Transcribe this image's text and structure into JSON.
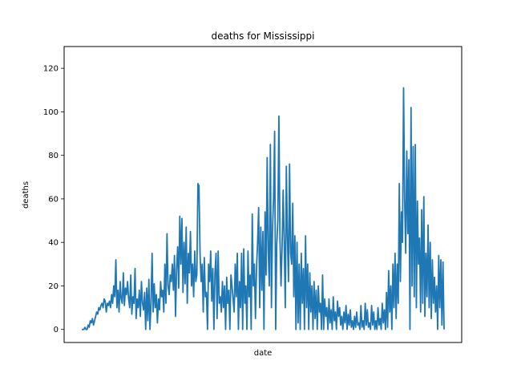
{
  "chart_data": {
    "type": "line",
    "title": "deaths for Mississippi",
    "xlabel": "date",
    "ylabel": "deaths",
    "ylim": [
      -6,
      130
    ],
    "yticks": [
      0,
      20,
      40,
      60,
      80,
      100,
      120
    ],
    "grid": false,
    "legend": "none",
    "color": "#1f77b4",
    "series": [
      {
        "values": [
          0,
          0,
          0,
          1,
          0,
          0,
          2,
          1,
          4,
          3,
          5,
          2,
          4,
          6,
          8,
          7,
          10,
          9,
          11,
          12,
          10,
          14,
          13,
          8,
          12,
          11,
          13,
          10,
          16,
          12,
          20,
          15,
          32,
          10,
          18,
          8,
          22,
          14,
          12,
          26,
          11,
          19,
          16,
          22,
          14,
          10,
          25,
          7,
          15,
          12,
          28,
          5,
          14,
          10,
          18,
          6,
          22,
          12,
          9,
          17,
          0,
          19,
          4,
          23,
          0,
          12,
          35,
          8,
          21,
          10,
          16,
          3,
          14,
          9,
          22,
          15,
          18,
          8,
          30,
          12,
          44,
          20,
          16,
          25,
          22,
          30,
          18,
          34,
          6,
          28,
          38,
          19,
          52,
          30,
          51,
          17,
          40,
          21,
          47,
          12,
          35,
          26,
          45,
          20,
          30,
          15,
          36,
          22,
          25,
          67,
          66,
          35,
          22,
          30,
          8,
          33,
          15,
          17,
          0,
          30,
          22,
          36,
          13,
          28,
          0,
          26,
          35,
          5,
          36,
          12,
          15,
          8,
          22,
          10,
          20,
          0,
          24,
          12,
          18,
          0,
          25,
          20,
          14,
          8,
          30,
          15,
          35,
          0,
          22,
          10,
          35,
          0,
          37,
          12,
          20,
          0,
          36,
          15,
          25,
          0,
          53,
          20,
          30,
          5,
          28,
          40,
          56,
          10,
          47,
          18,
          45,
          0,
          54,
          25,
          79,
          36,
          20,
          85,
          10,
          46,
          60,
          91,
          0,
          39,
          50,
          98,
          42,
          20,
          38,
          64,
          40,
          10,
          75,
          42,
          22,
          76,
          35,
          30,
          58,
          15,
          43,
          0,
          40,
          3,
          30,
          0,
          35,
          12,
          28,
          0,
          43,
          10,
          30,
          0,
          26,
          8,
          20,
          0,
          22,
          5,
          18,
          0,
          20,
          8,
          12,
          0,
          25,
          0,
          14,
          6,
          10,
          0,
          14,
          3,
          9,
          0,
          15,
          4,
          8,
          0,
          13,
          6,
          10,
          2,
          6,
          0,
          8,
          3,
          11,
          0,
          7,
          2,
          9,
          1,
          4,
          0,
          6,
          1,
          8,
          2,
          3,
          0,
          11,
          1,
          4,
          0,
          12,
          2,
          9,
          1,
          3,
          0,
          11,
          2,
          8,
          0,
          4,
          0,
          10,
          2,
          5,
          0,
          12,
          3,
          9,
          0,
          17,
          1,
          27,
          8,
          20,
          0,
          30,
          10,
          35,
          5,
          30,
          12,
          67,
          22,
          54,
          40,
          111,
          60,
          35,
          82,
          44,
          78,
          0,
          102,
          20,
          84,
          15,
          85,
          10,
          59,
          30,
          42,
          8,
          55,
          12,
          61,
          6,
          35,
          15,
          48,
          10,
          40,
          5,
          32,
          12,
          24,
          8,
          20,
          0,
          34,
          10,
          32,
          2,
          31,
          0
        ]
      }
    ]
  }
}
